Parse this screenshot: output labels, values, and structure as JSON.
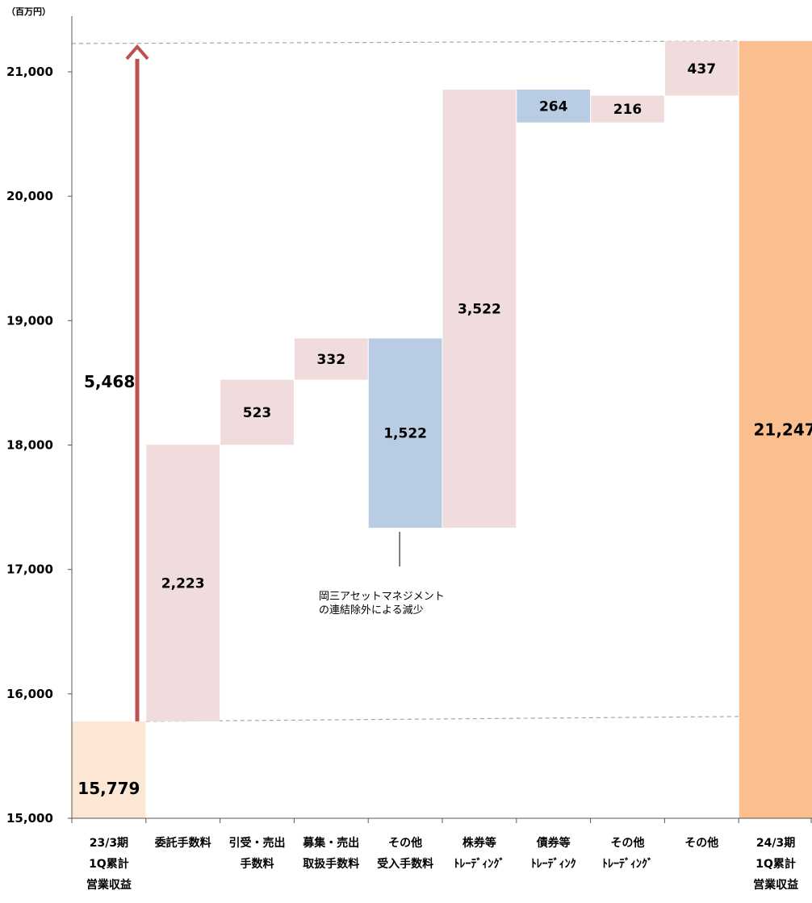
{
  "unit_label": "（百万円）",
  "colors": {
    "start_bar": "#fce6d4",
    "increase_bar": "#f0dcdc",
    "decrease_bar": "#b8cce4",
    "end_bar": "#fbbf8f",
    "arrow": "#c0504d",
    "guide_line": "#a6a6a6",
    "axis": "#595959"
  },
  "chart_data": {
    "type": "waterfall",
    "title": "",
    "xlabel": "",
    "ylabel": "",
    "ylim": [
      15000,
      21500
    ],
    "yticks": [
      "15,000",
      "16,000",
      "17,000",
      "18,000",
      "19,000",
      "20,000",
      "21,000"
    ],
    "ytick_values": [
      15000,
      16000,
      17000,
      18000,
      19000,
      20000,
      21000
    ],
    "categories": [
      [
        "23/3期",
        "1Q累計",
        "営業収益"
      ],
      [
        "委託手数料"
      ],
      [
        "引受・売出",
        "手数料"
      ],
      [
        "募集・売出",
        "取扱手数料"
      ],
      [
        "その他",
        "受入手数料"
      ],
      [
        "株券等",
        "ﾄﾚｰﾃﾞｨﾝｸﾞ"
      ],
      [
        "債券等",
        "ﾄﾚｰﾃﾞｨﾝｸ"
      ],
      [
        "その他",
        "ﾄﾚｰﾃﾞｨﾝｸﾞ"
      ],
      [
        "その他"
      ],
      [
        "24/3期",
        "1Q累計",
        "営業収益"
      ]
    ],
    "bars": [
      {
        "kind": "start",
        "base": 15000,
        "top": 15779,
        "label": "15,779"
      },
      {
        "kind": "increase",
        "base": 15779,
        "top": 18002,
        "label": "2,223"
      },
      {
        "kind": "increase",
        "base": 18002,
        "top": 18525,
        "label": "523"
      },
      {
        "kind": "increase",
        "base": 18525,
        "top": 18857,
        "label": "332"
      },
      {
        "kind": "decrease",
        "base": 17335,
        "top": 18857,
        "label": "1,522"
      },
      {
        "kind": "increase",
        "base": 17335,
        "top": 20857,
        "label": "3,522"
      },
      {
        "kind": "decrease",
        "base": 20593,
        "top": 20857,
        "label": "264"
      },
      {
        "kind": "increase",
        "base": 20593,
        "top": 20809,
        "label": "216"
      },
      {
        "kind": "increase",
        "base": 20809,
        "top": 21246,
        "label": "437"
      },
      {
        "kind": "end",
        "base": 15000,
        "top": 21247,
        "label": "21,247"
      }
    ],
    "total_change": {
      "from": 15779,
      "to": 21247,
      "label": "5,468"
    },
    "annotation": {
      "target_category_index": 4,
      "lines": [
        "岡三アセットマネジメント",
        "の連結除外による減少"
      ]
    }
  }
}
